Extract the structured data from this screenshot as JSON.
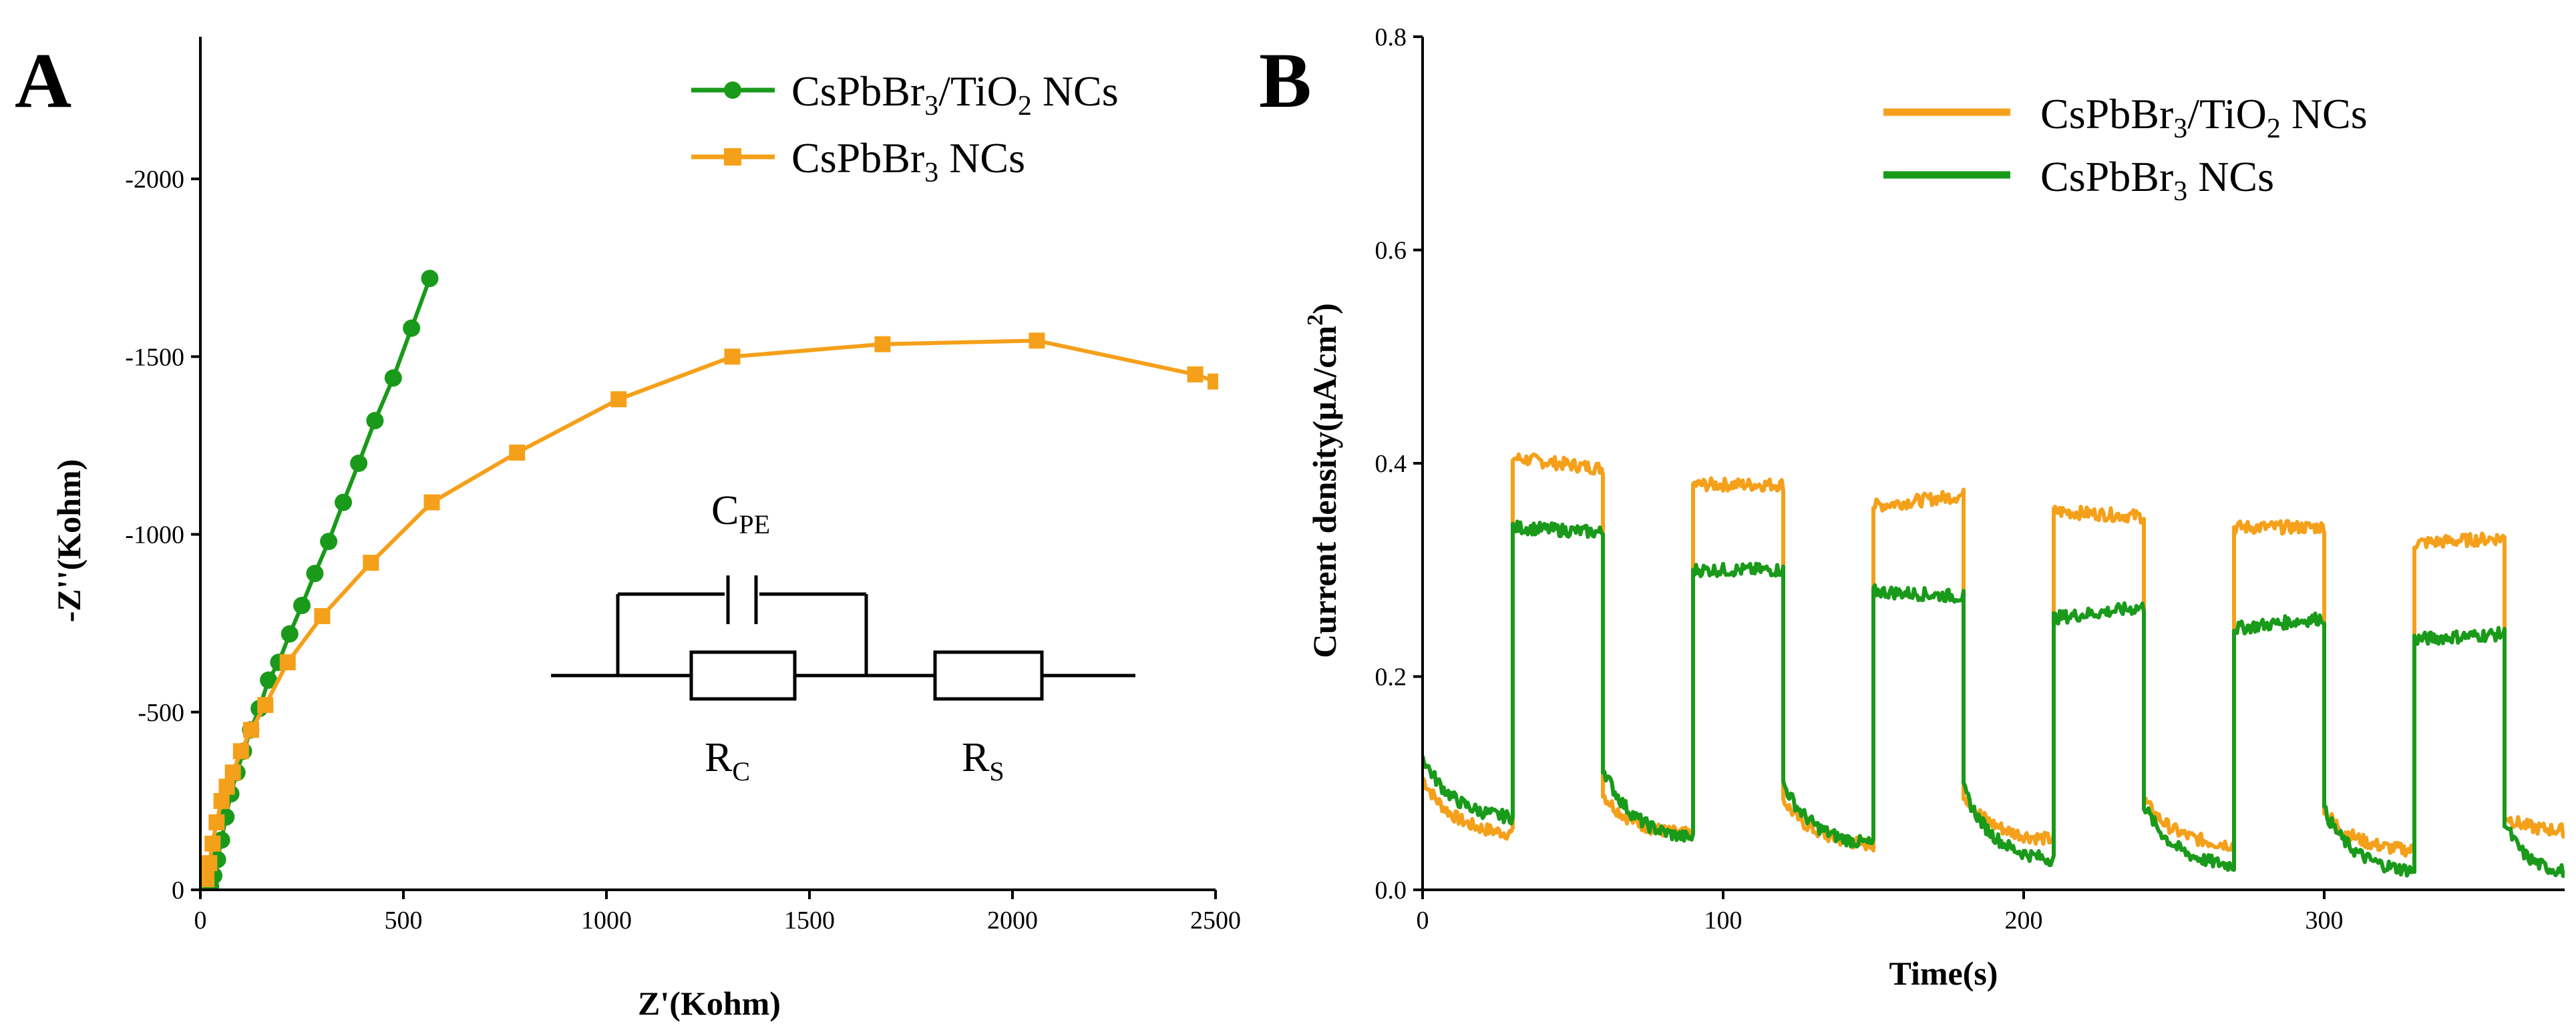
{
  "chart_data": [
    {
      "panel": "A",
      "type": "line",
      "xlabel": "Z'(Kohm)",
      "ylabel": "-Z''(Kohm)",
      "xlim": [
        0,
        2500
      ],
      "ylim": [
        0,
        2400
      ],
      "y_inverted_label_sign": true,
      "xticks": [
        0,
        500,
        1000,
        1500,
        2000,
        2500
      ],
      "xtick_labels": [
        "0",
        "500",
        "1000",
        "1500",
        "2000",
        "2500"
      ],
      "yticks": [
        0,
        500,
        1000,
        1500,
        2000
      ],
      "ytick_labels": [
        "0",
        "-500",
        "-1000",
        "-1500",
        "-2000"
      ],
      "legend_position": "top-right",
      "series": [
        {
          "name": "CsPbBr3/TiO2 NCs",
          "label_main": "CsPbBr",
          "label_sub1": "3",
          "label_mid": "/TiO",
          "label_sub2": "2",
          "label_end": " NCs",
          "color": "#1a9a1a",
          "marker": "circle",
          "x": [
            25,
            33,
            42,
            52,
            63,
            75,
            90,
            106,
            124,
            145,
            168,
            193,
            220,
            250,
            282,
            316,
            352,
            390,
            430,
            475,
            520,
            565
          ],
          "y": [
            10,
            40,
            85,
            140,
            205,
            270,
            330,
            390,
            450,
            510,
            590,
            640,
            720,
            800,
            890,
            980,
            1090,
            1200,
            1320,
            1440,
            1580,
            1720
          ]
        },
        {
          "name": "CsPbBr3 NCs",
          "label_main": "CsPbBr",
          "label_sub1": "3",
          "label_end": " NCs",
          "color": "#f5a01a",
          "marker": "square",
          "x": [
            15,
            22,
            30,
            40,
            52,
            65,
            80,
            100,
            125,
            160,
            215,
            300,
            420,
            570,
            780,
            1030,
            1310,
            1680,
            2060,
            2450,
            2500
          ],
          "y": [
            30,
            75,
            130,
            190,
            250,
            290,
            330,
            390,
            450,
            520,
            640,
            770,
            920,
            1090,
            1230,
            1380,
            1500,
            1535,
            1545,
            1450,
            1430
          ]
        }
      ],
      "inset_circuit": {
        "cpe_label": "C",
        "cpe_sub": "PE",
        "rc_label": "R",
        "rc_sub": "C",
        "rs_label": "R",
        "rs_sub": "S"
      }
    },
    {
      "panel": "B",
      "type": "line",
      "xlabel": "Time(s)",
      "ylabel_main": "Current density(μA/cm",
      "ylabel_sup": "2",
      "ylabel_end": ")",
      "xlim": [
        0,
        380
      ],
      "ylim": [
        0.0,
        0.8
      ],
      "xticks": [
        0,
        100,
        200,
        300
      ],
      "xtick_labels": [
        "0",
        "100",
        "200",
        "300"
      ],
      "yticks": [
        0.0,
        0.2,
        0.4,
        0.6,
        0.8
      ],
      "ytick_labels": [
        "0.0",
        "0.2",
        "0.4",
        "0.6",
        "0.8"
      ],
      "legend_position": "top-right",
      "cycle_on_times": [
        30,
        90,
        150,
        210,
        270,
        330
      ],
      "cycle_off_times": [
        60,
        120,
        180,
        240,
        300,
        360
      ],
      "series": [
        {
          "name": "CsPbBr3/TiO2 NCs",
          "label_main": "CsPbBr",
          "label_sub1": "3",
          "label_mid": "/TiO",
          "label_sub2": "2",
          "label_end": " NCs",
          "color": "#f5a01a",
          "on_start": [
            0.405,
            0.38,
            0.36,
            0.355,
            0.34,
            0.325
          ],
          "on_end": [
            0.395,
            0.38,
            0.37,
            0.35,
            0.34,
            0.33
          ],
          "off_start": [
            0.105,
            0.09,
            0.085,
            0.09,
            0.085,
            0.075,
            0.07
          ],
          "off_end": [
            0.05,
            0.05,
            0.04,
            0.045,
            0.04,
            0.035,
            0.055
          ]
        },
        {
          "name": "CsPbBr3 NCs",
          "label_main": "CsPbBr",
          "label_sub1": "3",
          "label_end": " NCs",
          "color": "#1a9a1a",
          "on_start": [
            0.34,
            0.3,
            0.28,
            0.255,
            0.245,
            0.235
          ],
          "on_end": [
            0.335,
            0.3,
            0.275,
            0.265,
            0.255,
            0.24
          ],
          "off_start": [
            0.125,
            0.115,
            0.1,
            0.095,
            0.08,
            0.075,
            0.065
          ],
          "off_end": [
            0.065,
            0.045,
            0.04,
            0.025,
            0.02,
            0.015,
            0.015
          ]
        }
      ]
    }
  ]
}
